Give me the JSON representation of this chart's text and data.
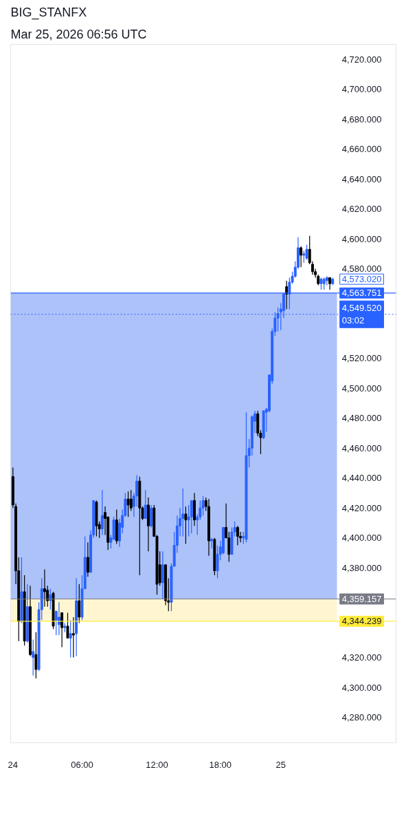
{
  "chart_data": {
    "type": "candlestick",
    "title": "BIG_STANFX",
    "subtitle": "Mar 25, 2026 06:56 UTC",
    "categories": [
      "24",
      null,
      null,
      null,
      null,
      null,
      null,
      null,
      null,
      null,
      null,
      null,
      null,
      null,
      null,
      null,
      null,
      null,
      null,
      null,
      null,
      null,
      null,
      null,
      "06:00",
      null,
      null,
      null,
      null,
      null,
      null,
      null,
      null,
      null,
      null,
      null,
      null,
      null,
      null,
      null,
      null,
      null,
      null,
      null,
      null,
      null,
      null,
      null,
      null,
      null,
      "12:00",
      null,
      null,
      null,
      null,
      null,
      null,
      null,
      null,
      null,
      null,
      null,
      null,
      null,
      null,
      null,
      null,
      null,
      null,
      null,
      null,
      null,
      "18:00",
      null,
      null,
      null,
      null,
      null,
      null,
      null,
      null,
      null,
      null,
      null,
      null,
      null,
      null,
      null,
      null,
      null,
      null,
      null,
      null,
      "25",
      null,
      null,
      null,
      null,
      null,
      null,
      null,
      null,
      null,
      null,
      null,
      null,
      null,
      null,
      null,
      null,
      null,
      null
    ],
    "ohlc": [
      [
        4441,
        4447,
        4420,
        4422
      ],
      [
        4421,
        4423,
        4369,
        4378
      ],
      [
        4378,
        4387,
        4331,
        4344
      ],
      [
        4344,
        4387,
        4343,
        4364
      ],
      [
        4364,
        4375,
        4328,
        4331
      ],
      [
        4331,
        4369,
        4330,
        4354
      ],
      [
        4354,
        4368,
        4321,
        4322
      ],
      [
        4320,
        4332,
        4308,
        4324
      ],
      [
        4322,
        4337,
        4306,
        4312
      ],
      [
        4312,
        4357,
        4311,
        4352
      ],
      [
        4352,
        4373,
        4345,
        4366
      ],
      [
        4366,
        4379,
        4354,
        4364
      ],
      [
        4365,
        4368,
        4354,
        4358
      ],
      [
        4358,
        4366,
        4352,
        4362
      ],
      [
        4363,
        4364,
        4339,
        4341
      ],
      [
        4345,
        4351,
        4335,
        4351
      ],
      [
        4342,
        4357,
        4335,
        4347
      ],
      [
        4350,
        4350,
        4327,
        4340
      ],
      [
        4340,
        4343,
        4337,
        4341
      ],
      [
        4341,
        4350,
        4333,
        4333
      ],
      [
        4333,
        4345,
        4320,
        4336
      ],
      [
        4336,
        4347,
        4320,
        4335
      ],
      [
        4336,
        4373,
        4321,
        4358
      ],
      [
        4358,
        4369,
        4343,
        4347
      ],
      [
        4347,
        4375,
        4345,
        4366
      ],
      [
        4366,
        4401,
        4366,
        4387
      ],
      [
        4387,
        4397,
        4374,
        4377
      ],
      [
        4377,
        4405,
        4377,
        4402
      ],
      [
        4402,
        4425,
        4400,
        4425
      ],
      [
        4424,
        4425,
        4401,
        4408
      ],
      [
        4409,
        4411,
        4400,
        4406
      ],
      [
        4406,
        4432,
        4402,
        4415
      ],
      [
        4417,
        4421,
        4402,
        4413
      ],
      [
        4414,
        4414,
        4392,
        4397
      ],
      [
        4397,
        4402,
        4393,
        4400
      ],
      [
        4399,
        4414,
        4399,
        4412
      ],
      [
        4412,
        4419,
        4396,
        4398
      ],
      [
        4398,
        4413,
        4394,
        4410
      ],
      [
        4407,
        4419,
        4403,
        4415
      ],
      [
        4415,
        4430,
        4414,
        4426
      ],
      [
        4426,
        4431,
        4414,
        4422
      ],
      [
        4426,
        4432,
        4418,
        4420
      ],
      [
        4421,
        4430,
        4414,
        4428
      ],
      [
        4428,
        4442,
        4421,
        4438
      ],
      [
        4438,
        4441,
        4375,
        4420
      ],
      [
        4420,
        4421,
        4412,
        4413
      ],
      [
        4413,
        4432,
        4413,
        4422
      ],
      [
        4422,
        4427,
        4391,
        4408
      ],
      [
        4408,
        4422,
        4407,
        4420
      ],
      [
        4420,
        4422,
        4401,
        4401
      ],
      [
        4401,
        4402,
        4362,
        4369
      ],
      [
        4382,
        4391,
        4368,
        4370
      ],
      [
        4370,
        4391,
        4359,
        4382
      ],
      [
        4382,
        4382,
        4355,
        4358
      ],
      [
        4358,
        4373,
        4351,
        4357
      ],
      [
        4357,
        4383,
        4351,
        4381
      ],
      [
        4381,
        4404,
        4381,
        4395
      ],
      [
        4395,
        4415,
        4390,
        4408
      ],
      [
        4408,
        4420,
        4401,
        4413
      ],
      [
        4413,
        4433,
        4401,
        4416
      ],
      [
        4416,
        4421,
        4396,
        4412
      ],
      [
        4412,
        4422,
        4401,
        4414
      ],
      [
        4414,
        4425,
        4403,
        4425
      ],
      [
        4425,
        4430,
        4408,
        4412
      ],
      [
        4412,
        4416,
        4402,
        4414
      ],
      [
        4414,
        4425,
        4412,
        4420
      ],
      [
        4420,
        4428,
        4415,
        4425
      ],
      [
        4425,
        4427,
        4418,
        4421
      ],
      [
        4421,
        4426,
        4388,
        4398
      ],
      [
        4398,
        4400,
        4393,
        4399
      ],
      [
        4399,
        4400,
        4375,
        4378
      ],
      [
        4378,
        4395,
        4373,
        4389
      ],
      [
        4389,
        4398,
        4385,
        4394
      ],
      [
        4390,
        4407,
        4389,
        4407
      ],
      [
        4407,
        4423,
        4400,
        4400
      ],
      [
        4400,
        4404,
        4384,
        4389
      ],
      [
        4389,
        4407,
        4389,
        4404
      ],
      [
        4404,
        4411,
        4401,
        4407
      ],
      [
        4407,
        4408,
        4395,
        4401
      ],
      [
        4401,
        4404,
        4397,
        4400
      ],
      [
        4400,
        4404,
        4396,
        4401
      ],
      [
        4399,
        4484,
        4397,
        4455
      ],
      [
        4455,
        4466,
        4447,
        4460
      ],
      [
        4460,
        4482,
        4455,
        4481
      ],
      [
        4478,
        4485,
        4470,
        4483
      ],
      [
        4483,
        4485,
        4468,
        4470
      ],
      [
        4470,
        4472,
        4456,
        4467
      ],
      [
        4467,
        4485,
        4466,
        4485
      ],
      [
        4484,
        4487,
        4471,
        4486
      ],
      [
        4485,
        4509,
        4484,
        4509
      ],
      [
        4505,
        4540,
        4503,
        4538
      ],
      [
        4538,
        4551,
        4535,
        4547
      ],
      [
        4547,
        4554,
        4538,
        4550
      ],
      [
        4551,
        4557,
        4539,
        4553
      ],
      [
        4552,
        4564,
        4547,
        4563
      ],
      [
        4568,
        4572,
        4553,
        4563
      ],
      [
        4563,
        4574,
        4553,
        4571
      ],
      [
        4571,
        4578,
        4570,
        4575
      ],
      [
        4575,
        4585,
        4574,
        4581
      ],
      [
        4581,
        4601,
        4580,
        4594
      ],
      [
        4594,
        4595,
        4581,
        4589
      ],
      [
        4589,
        4592,
        4584,
        4590
      ],
      [
        4587,
        4596,
        4586,
        4593
      ],
      [
        4593,
        4602,
        4583,
        4584
      ],
      [
        4583,
        4585,
        4576,
        4578
      ],
      [
        4578,
        4580,
        4574,
        4576
      ],
      [
        4575,
        4576,
        4569,
        4570
      ],
      [
        4570,
        4574,
        4566,
        4573
      ],
      [
        4570,
        4574,
        4566,
        4573
      ],
      [
        4572,
        4575,
        4569,
        4574
      ],
      [
        4574,
        4574,
        4566,
        4570
      ],
      [
        4570,
        4574,
        4569,
        4573.02
      ]
    ],
    "colors": [
      "#000000",
      "#000000",
      "#000000",
      "#2962ff",
      "#000000",
      "#2962ff",
      "#000000",
      "#2962ff",
      "#000000",
      "#2962ff",
      "#2962ff",
      "#000000",
      "#000000",
      "#2962ff",
      "#000000",
      "#2962ff",
      "#2962ff",
      "#000000",
      "#2962ff",
      "#000000",
      "#2962ff",
      "#000000",
      "#2962ff",
      "#000000",
      "#2962ff",
      "#2962ff",
      "#000000",
      "#2962ff",
      "#2962ff",
      "#000000",
      "#000000",
      "#2962ff",
      "#000000",
      "#000000",
      "#2962ff",
      "#2962ff",
      "#000000",
      "#2962ff",
      "#2962ff",
      "#2962ff",
      "#000000",
      "#000000",
      "#2962ff",
      "#2962ff",
      "#000000",
      "#000000",
      "#2962ff",
      "#000000",
      "#2962ff",
      "#000000",
      "#000000",
      "#000000",
      "#2962ff",
      "#000000",
      "#000000",
      "#2962ff",
      "#2962ff",
      "#2962ff",
      "#2962ff",
      "#2962ff",
      "#000000",
      "#2962ff",
      "#2962ff",
      "#000000",
      "#2962ff",
      "#2962ff",
      "#2962ff",
      "#000000",
      "#000000",
      "#2962ff",
      "#000000",
      "#2962ff",
      "#2962ff",
      "#2962ff",
      "#000000",
      "#000000",
      "#2962ff",
      "#2962ff",
      "#000000",
      "#000000",
      "#2962ff",
      "#2962ff",
      "#2962ff",
      "#2962ff",
      "#2962ff",
      "#000000",
      "#000000",
      "#2962ff",
      "#2962ff",
      "#2962ff",
      "#2962ff",
      "#2962ff",
      "#2962ff",
      "#2962ff",
      "#2962ff",
      "#000000",
      "#2962ff",
      "#2962ff",
      "#2962ff",
      "#2962ff",
      "#000000",
      "#2962ff",
      "#2962ff",
      "#000000",
      "#000000",
      "#000000",
      "#000000",
      "#2962ff",
      "#2962ff",
      "#2962ff",
      "#000000",
      "#2962ff"
    ],
    "ylim": [
      4263,
      4730
    ],
    "yticks": [
      {
        "value": 4280,
        "label": "4,280.000"
      },
      {
        "value": 4300,
        "label": "4,300.000"
      },
      {
        "value": 4320,
        "label": "4,320.000"
      },
      {
        "value": 4380,
        "label": "4,380.000"
      },
      {
        "value": 4400,
        "label": "4,400.000"
      },
      {
        "value": 4420,
        "label": "4,420.000"
      },
      {
        "value": 4440,
        "label": "4,440.000"
      },
      {
        "value": 4460,
        "label": "4,460.000"
      },
      {
        "value": 4480,
        "label": "4,480.000"
      },
      {
        "value": 4500,
        "label": "4,500.000"
      },
      {
        "value": 4520,
        "label": "4,520.000"
      },
      {
        "value": 4580,
        "label": "4,580.000"
      },
      {
        "value": 4600,
        "label": "4,600.000"
      },
      {
        "value": 4620,
        "label": "4,620.000"
      },
      {
        "value": 4640,
        "label": "4,640.000"
      },
      {
        "value": 4660,
        "label": "4,660.000"
      },
      {
        "value": 4680,
        "label": "4,680.000"
      },
      {
        "value": 4700,
        "label": "4,700.000"
      },
      {
        "value": 4720,
        "label": "4,720.000"
      }
    ],
    "bands": [
      {
        "axis": "y",
        "from": 4359.157,
        "to": 4563.751,
        "color": "#a3bbf8"
      },
      {
        "axis": "y",
        "from": 4344.239,
        "to": 4359.157,
        "color": "#fff5cc"
      }
    ],
    "ref_lines": [
      {
        "axis": "y",
        "value": 4549.52,
        "label": "4,549.520\n03:02",
        "color": "#2962ff",
        "line_style": "dotted"
      },
      {
        "axis": "y",
        "value": 4563.751,
        "label": "4,563.751",
        "color": "#2962ff",
        "line_style": "solid"
      },
      {
        "axis": "y",
        "value": 4359.157,
        "label": "4,359.157",
        "color": "#787b86",
        "line_style": "solid"
      },
      {
        "axis": "y",
        "value": 4344.239,
        "label": "4,344.239",
        "color": "#ffeb3b",
        "line_style": "solid"
      }
    ],
    "annotations": [
      "4,573.020"
    ]
  }
}
